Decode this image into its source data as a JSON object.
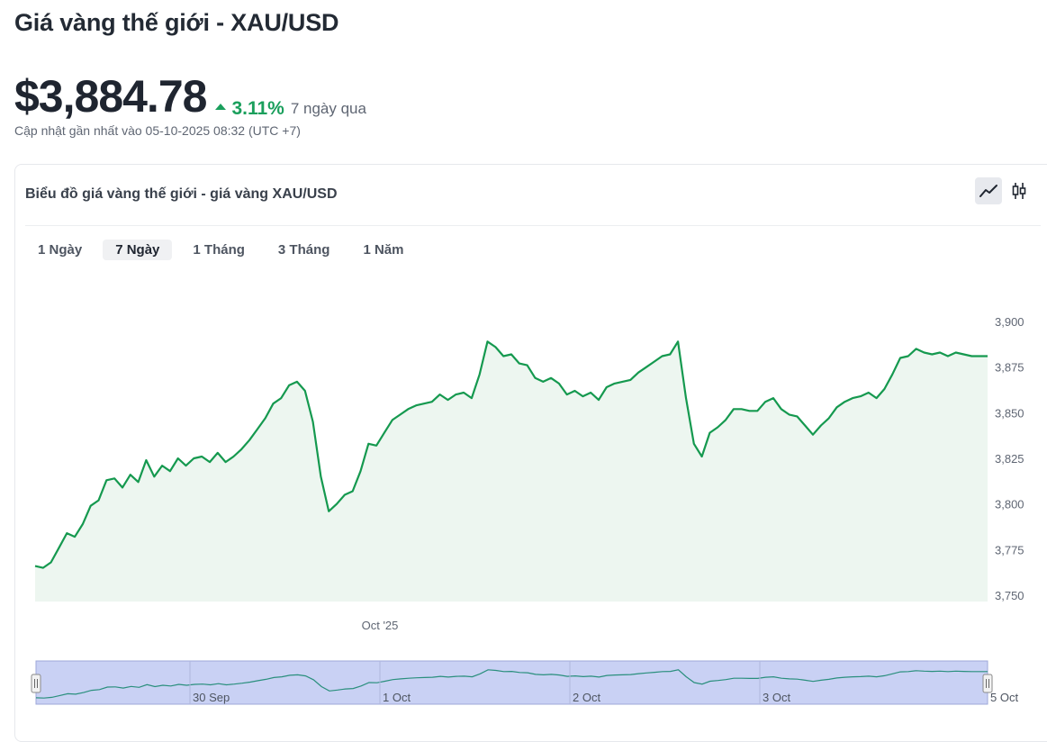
{
  "header": {
    "title": "Giá vàng thế giới - XAU/USD",
    "price": "$3,884.78",
    "change_pct": "3.11%",
    "change_period": "7 ngày qua",
    "updated": "Cập nhật gần nhất vào 05-10-2025 08:32 (UTC +7)"
  },
  "card": {
    "title": "Biểu đồ giá vàng thế giới - giá vàng XAU/USD",
    "chart_types": [
      {
        "icon": "line-chart-icon",
        "active": true
      },
      {
        "icon": "candlestick-icon",
        "active": false
      }
    ],
    "ranges": [
      {
        "label": "1 Ngày",
        "active": false
      },
      {
        "label": "7 Ngày",
        "active": true
      },
      {
        "label": "1 Tháng",
        "active": false
      },
      {
        "label": "3 Tháng",
        "active": false
      },
      {
        "label": "1 Năm",
        "active": false
      }
    ]
  },
  "colors": {
    "line": "#15994f",
    "area": "#edf6f0",
    "up": "#1a9f5c",
    "navigator_bg": "#c9d1f4",
    "navigator_line": "#2a8f7d"
  },
  "chart_data": {
    "type": "area",
    "ylim": [
      3750,
      3900
    ],
    "y_ticks": [
      "3,750",
      "3,775",
      "3,800",
      "3,825",
      "3,850",
      "3,875",
      "3,900"
    ],
    "x_tick_labels": [
      "Oct '25"
    ],
    "navigator_labels": [
      "30 Sep",
      "1 Oct",
      "2 Oct",
      "3 Oct",
      "5 Oct"
    ],
    "grid": false,
    "series": [
      {
        "x": [
          0,
          1,
          2,
          3,
          4,
          5,
          6,
          7,
          8,
          9,
          10,
          11,
          12,
          13,
          14,
          15,
          16,
          17,
          18,
          19,
          20,
          21,
          22,
          23,
          24,
          25,
          26,
          27,
          28,
          29,
          30,
          31,
          32,
          33,
          34,
          35,
          36,
          37,
          38,
          39,
          40,
          41,
          42,
          43,
          44,
          45,
          46,
          47,
          48,
          49,
          50,
          51,
          52,
          53,
          54,
          55,
          56,
          57,
          58,
          59,
          60,
          61,
          62,
          63,
          64,
          65,
          66,
          67,
          68,
          69,
          70,
          71,
          72,
          73,
          74,
          75,
          76,
          77,
          78,
          79,
          80,
          81,
          82,
          83,
          84,
          85,
          86,
          87,
          88,
          89,
          90,
          91,
          92,
          93,
          94,
          95,
          96,
          97,
          98,
          99,
          100,
          101,
          102,
          103,
          104,
          105,
          106,
          107,
          108,
          109,
          110,
          111,
          112,
          113,
          114,
          115,
          116,
          117,
          118,
          119,
          120
        ],
        "values": [
          3766,
          3765,
          3768,
          3776,
          3784,
          3782,
          3789,
          3799,
          3802,
          3813,
          3814,
          3809,
          3816,
          3812,
          3824,
          3815,
          3821,
          3818,
          3825,
          3821,
          3825,
          3826,
          3823,
          3828,
          3823,
          3826,
          3830,
          3835,
          3841,
          3847,
          3855,
          3858,
          3865,
          3867,
          3862,
          3845,
          3815,
          3796,
          3800,
          3805,
          3807,
          3818,
          3833,
          3832,
          3839,
          3846,
          3849,
          3852,
          3854,
          3855,
          3856,
          3860,
          3857,
          3860,
          3861,
          3858,
          3871,
          3889,
          3886,
          3881,
          3882,
          3877,
          3876,
          3869,
          3867,
          3869,
          3866,
          3860,
          3862,
          3859,
          3861,
          3857,
          3864,
          3866,
          3867,
          3868,
          3872,
          3875,
          3878,
          3881,
          3882,
          3889,
          3858,
          3833,
          3826,
          3839,
          3842,
          3846,
          3852,
          3852,
          3851,
          3851,
          3856,
          3858,
          3852,
          3849,
          3848,
          3843,
          3838,
          3843,
          3847,
          3853,
          3856,
          3858,
          3859,
          3861,
          3858,
          3863,
          3871,
          3880,
          3881,
          3885,
          3883,
          3882,
          3883,
          3881,
          3883,
          3882,
          3881,
          3881,
          3881
        ]
      }
    ]
  }
}
